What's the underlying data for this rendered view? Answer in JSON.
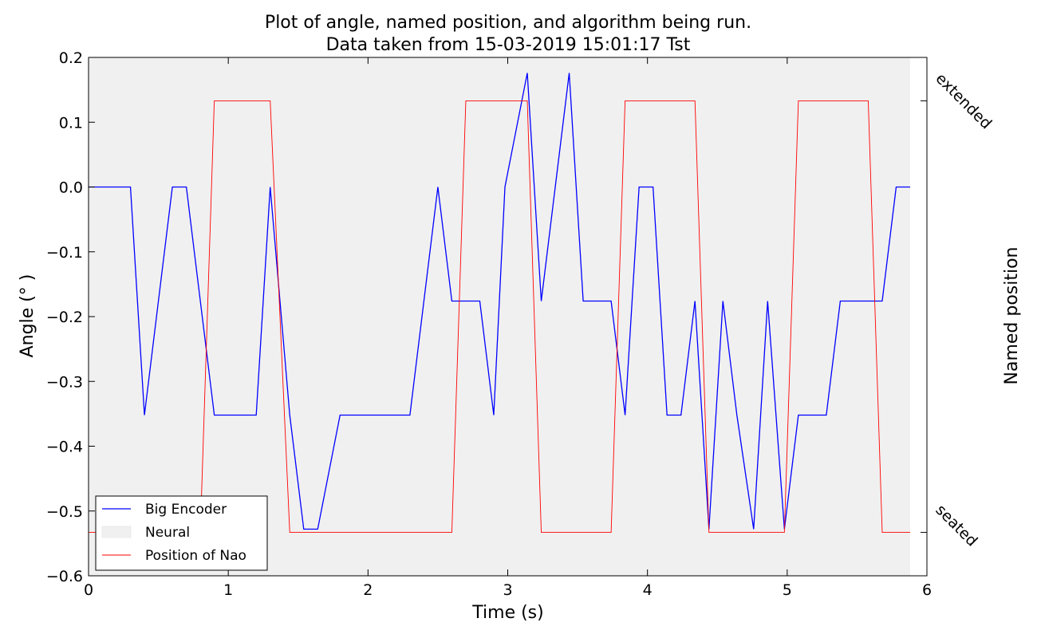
{
  "chart_data": {
    "type": "line",
    "title": "Plot of angle, named position, and algorithm being run.",
    "subtitle": "Data taken from 15-03-2019 15:01:17 Tst",
    "xlabel": "Time (s)",
    "ylabel": "Angle (° )",
    "y2label": "Named position",
    "xlim": [
      0,
      6
    ],
    "ylim": [
      -0.6,
      0.2
    ],
    "x_ticks": [
      0,
      1,
      2,
      3,
      4,
      5,
      6
    ],
    "y_ticks": [
      0.2,
      0.1,
      0.0,
      -0.1,
      -0.2,
      -0.3,
      -0.4,
      -0.5,
      -0.6
    ],
    "x_tick_labels": [
      "0",
      "1",
      "2",
      "3",
      "4",
      "5",
      "6"
    ],
    "y_tick_labels": [
      "0.2",
      "0.1",
      "0.0",
      "−0.1",
      "−0.2",
      "−0.3",
      "−0.4",
      "−0.5",
      "−0.6"
    ],
    "y2_ticks": [
      {
        "label": "extended",
        "value": 0.133
      },
      {
        "label": "seated",
        "value": -0.533
      }
    ],
    "grid": false,
    "legend_position": "lower-left",
    "shaded_region": {
      "name": "Neural",
      "x_start": 0,
      "x_end": 5.88,
      "color": "#f0f0f0"
    },
    "series": [
      {
        "name": "Big Encoder",
        "color": "#0000ff",
        "points": [
          [
            0,
            0.0
          ],
          [
            0.3,
            0.0
          ],
          [
            0.4,
            -0.352
          ],
          [
            0.6,
            0.0
          ],
          [
            0.7,
            0.0
          ],
          [
            0.9,
            -0.352
          ],
          [
            1.2,
            -0.352
          ],
          [
            1.3,
            0.0
          ],
          [
            1.44,
            -0.352
          ],
          [
            1.54,
            -0.528
          ],
          [
            1.64,
            -0.528
          ],
          [
            1.8,
            -0.352
          ],
          [
            2.3,
            -0.352
          ],
          [
            2.5,
            0.0
          ],
          [
            2.6,
            -0.176
          ],
          [
            2.8,
            -0.176
          ],
          [
            2.9,
            -0.352
          ],
          [
            2.98,
            0.0
          ],
          [
            3.14,
            0.176
          ],
          [
            3.24,
            -0.176
          ],
          [
            3.34,
            0.0
          ],
          [
            3.44,
            0.176
          ],
          [
            3.54,
            -0.176
          ],
          [
            3.74,
            -0.176
          ],
          [
            3.84,
            -0.352
          ],
          [
            3.94,
            0.0
          ],
          [
            4.04,
            0.0
          ],
          [
            4.14,
            -0.352
          ],
          [
            4.24,
            -0.352
          ],
          [
            4.34,
            -0.176
          ],
          [
            4.44,
            -0.528
          ],
          [
            4.54,
            -0.176
          ],
          [
            4.64,
            -0.352
          ],
          [
            4.76,
            -0.528
          ],
          [
            4.86,
            -0.176
          ],
          [
            4.98,
            -0.528
          ],
          [
            5.08,
            -0.352
          ],
          [
            5.28,
            -0.352
          ],
          [
            5.38,
            -0.176
          ],
          [
            5.68,
            -0.176
          ],
          [
            5.78,
            0.0
          ],
          [
            5.88,
            0.0
          ]
        ]
      },
      {
        "name": "Position of Nao",
        "color": "#ff0000",
        "points": [
          [
            0,
            -0.533
          ],
          [
            0.8,
            -0.533
          ],
          [
            0.9,
            0.133
          ],
          [
            1.3,
            0.133
          ],
          [
            1.44,
            -0.533
          ],
          [
            2.6,
            -0.533
          ],
          [
            2.7,
            0.133
          ],
          [
            3.14,
            0.133
          ],
          [
            3.24,
            -0.533
          ],
          [
            3.74,
            -0.533
          ],
          [
            3.84,
            0.133
          ],
          [
            4.34,
            0.133
          ],
          [
            4.44,
            -0.533
          ],
          [
            4.98,
            -0.533
          ],
          [
            5.08,
            0.133
          ],
          [
            5.58,
            0.133
          ],
          [
            5.68,
            -0.533
          ],
          [
            5.88,
            -0.533
          ]
        ]
      }
    ],
    "legend": [
      "Big Encoder",
      "Neural",
      "Position of Nao"
    ]
  }
}
